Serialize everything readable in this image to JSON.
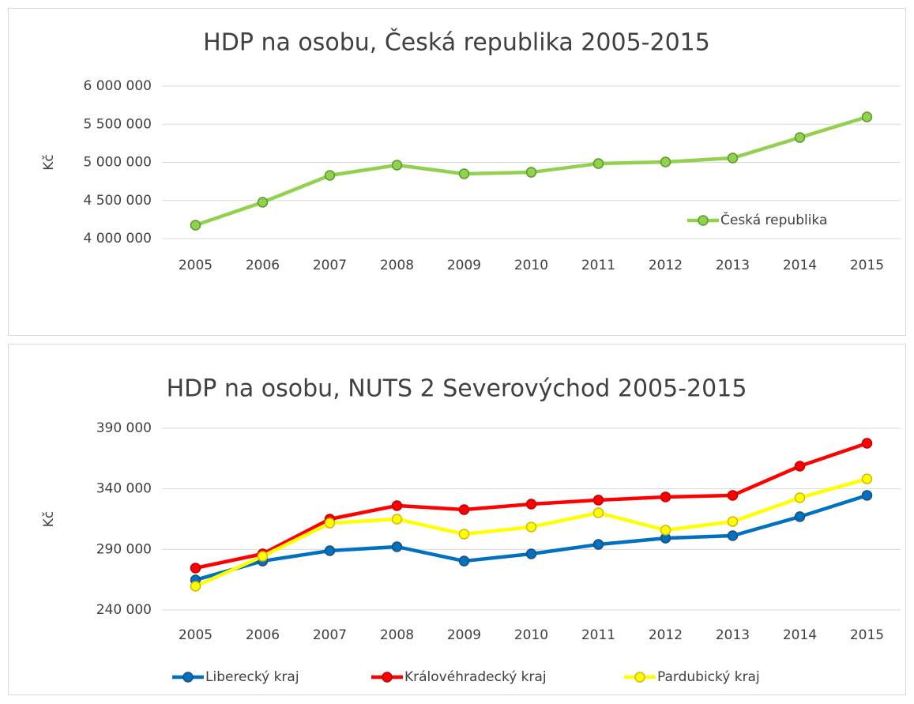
{
  "chart_data": [
    {
      "type": "line",
      "title": "HDP na osobu, Česká republika 2005-2015",
      "y_label": "Kč",
      "categories": [
        "2005",
        "2006",
        "2007",
        "2008",
        "2009",
        "2010",
        "2011",
        "2012",
        "2013",
        "2014",
        "2015"
      ],
      "series": [
        {
          "name": "Česká republika",
          "color": "#92d050",
          "values": [
            4176000,
            4477000,
            4829000,
            4964000,
            4850000,
            4870000,
            4984000,
            5005000,
            5057000,
            5326000,
            5596000
          ]
        }
      ],
      "ylim": [
        4000000,
        6000000
      ],
      "yticks": [
        {
          "value": 4000000,
          "label": "4 000 000"
        },
        {
          "value": 4500000,
          "label": "4 500 000"
        },
        {
          "value": 5000000,
          "label": "5 000 000"
        },
        {
          "value": 5500000,
          "label": "5 500 000"
        },
        {
          "value": 6000000,
          "label": "6 000 000"
        }
      ],
      "grid": true,
      "legend": "inside-right"
    },
    {
      "type": "line",
      "title": "HDP na osobu, NUTS 2 Severovýchod 2005-2015",
      "y_label": "Kč",
      "categories": [
        "2005",
        "2006",
        "2007",
        "2008",
        "2009",
        "2010",
        "2011",
        "2012",
        "2013",
        "2014",
        "2015"
      ],
      "series": [
        {
          "name": "Liberecký kraj",
          "color": "#0070c0",
          "values": [
            264800,
            280400,
            288900,
            292200,
            280400,
            286300,
            294100,
            299300,
            301300,
            317000,
            334600
          ]
        },
        {
          "name": "Královéhradecký kraj",
          "color": "#ff0000",
          "values": [
            274600,
            286300,
            315000,
            326100,
            322800,
            327400,
            330700,
            333300,
            334600,
            358700,
            377600
          ]
        },
        {
          "name": "Pardubický kraj",
          "color": "#ffff00",
          "values": [
            259600,
            284300,
            311700,
            315000,
            302600,
            308500,
            320200,
            305900,
            313000,
            332600,
            348200
          ]
        }
      ],
      "ylim": [
        240000,
        390000
      ],
      "yticks": [
        {
          "value": 240000,
          "label": "240 000"
        },
        {
          "value": 290000,
          "label": "290 000"
        },
        {
          "value": 340000,
          "label": "340 000"
        },
        {
          "value": 390000,
          "label": "390 000"
        }
      ],
      "grid": true,
      "legend": "bottom"
    }
  ]
}
